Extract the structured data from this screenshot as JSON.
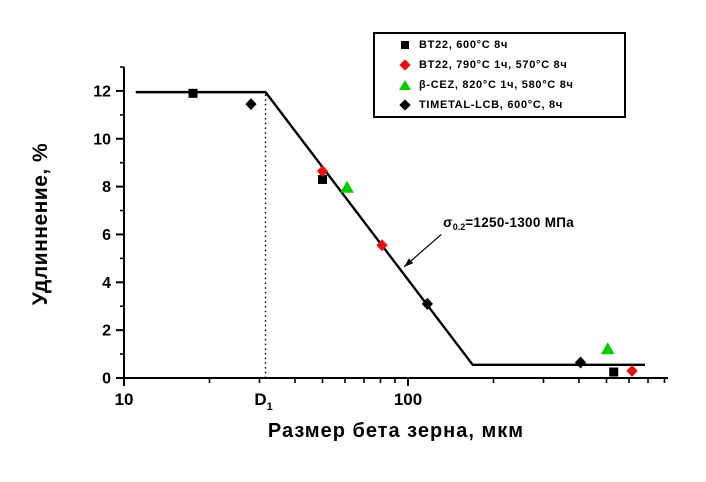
{
  "chart_data": {
    "type": "scatter",
    "title": "",
    "x_axis": {
      "label": "Размер бета зерна, мкм",
      "scale": "log",
      "min": 10,
      "max": 820,
      "major_ticks": [
        {
          "value": 10,
          "label": "10"
        },
        {
          "value": 100,
          "label": "100"
        }
      ],
      "minor_ticks": [
        20,
        30,
        40,
        50,
        60,
        70,
        80,
        90,
        200,
        300,
        400,
        500,
        600,
        700,
        800
      ],
      "special_label": {
        "text": "D",
        "subscript": "1",
        "x": 31
      }
    },
    "y_axis": {
      "label": "Удлиннение, %",
      "scale": "linear",
      "min": 0,
      "max": 13,
      "major_ticks": [
        0,
        2,
        4,
        6,
        8,
        10,
        12
      ],
      "minor_ticks": [
        1,
        3,
        5,
        7,
        9,
        11,
        13
      ]
    },
    "series": [
      {
        "name": "BT22, 600°C 8ч",
        "marker": "square",
        "color": "#000000",
        "points": [
          [
            17.5,
            11.9
          ],
          [
            50,
            8.3
          ],
          [
            530,
            0.25
          ]
        ]
      },
      {
        "name": "BT22, 790°C 1ч, 570°C 8ч",
        "marker": "diamond",
        "color": "#e81010",
        "points": [
          [
            50,
            8.65
          ],
          [
            81,
            5.55
          ],
          [
            615,
            0.3
          ]
        ]
      },
      {
        "name": "β-CEZ, 820°C 1ч, 580°C 8ч",
        "marker": "triangle",
        "color": "#00cc00",
        "points": [
          [
            61,
            7.95
          ],
          [
            505,
            1.2
          ]
        ]
      },
      {
        "name": "TIMETAL-LCB, 600°C, 8ч",
        "marker": "diamond",
        "color": "#000000",
        "points": [
          [
            28,
            11.45
          ],
          [
            117,
            3.1
          ],
          [
            405,
            0.65
          ]
        ]
      }
    ],
    "trend_line": {
      "color": "#000000",
      "width": 2.4,
      "points": [
        [
          11,
          11.95
        ],
        [
          31.5,
          11.95
        ],
        [
          169,
          0.55
        ],
        [
          683,
          0.55
        ]
      ]
    },
    "reference_line": {
      "style": "dotted",
      "x": 31.5,
      "y_from": 0,
      "y_to": 11.85
    },
    "annotation": {
      "sigma": "σ",
      "subscript": "0.2",
      "text": "=1250-1300 МПа",
      "text_pos": [
        133,
        6.45
      ],
      "arrow_from": [
        131,
        6.0
      ],
      "arrow_to": [
        97,
        4.65
      ]
    },
    "legend": {
      "position": "top-right",
      "entries": [
        {
          "marker": "square",
          "color": "#000000",
          "label": "BT22, 600°C 8ч"
        },
        {
          "marker": "diamond",
          "color": "#e81010",
          "label": "BT22, 790°C 1ч, 570°C 8ч"
        },
        {
          "marker": "triangle",
          "color": "#00cc00",
          "label": "β-CEZ, 820°C 1ч, 580°C 8ч"
        },
        {
          "marker": "diamond",
          "color": "#000000",
          "label": "TIMETAL-LCB, 600°C, 8ч"
        }
      ]
    }
  }
}
